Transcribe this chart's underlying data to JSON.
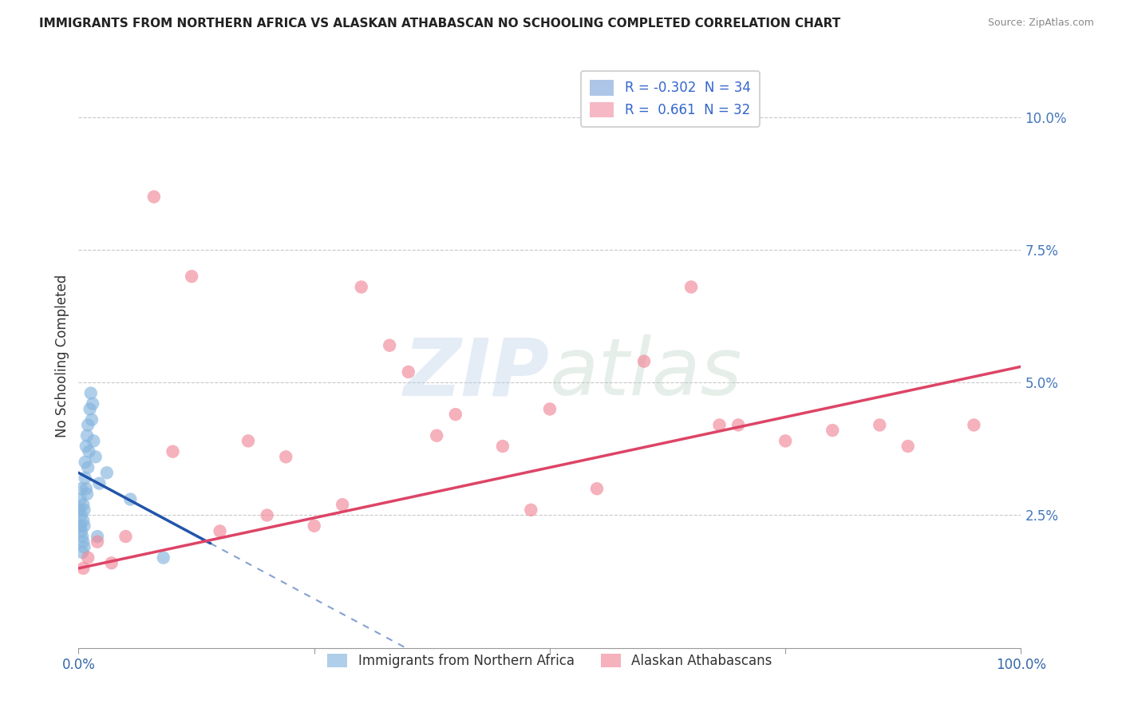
{
  "title": "IMMIGRANTS FROM NORTHERN AFRICA VS ALASKAN ATHABASCAN NO SCHOOLING COMPLETED CORRELATION CHART",
  "source": "Source: ZipAtlas.com",
  "ylabel": "No Schooling Completed",
  "watermark_zip": "ZIP",
  "watermark_atlas": "atlas",
  "legend1_label": "R = -0.302  N = 34",
  "legend2_label": "R =  0.661  N = 32",
  "legend1_color": "#adc6e8",
  "legend2_color": "#f5b8c4",
  "dot1_color": "#85b5de",
  "dot2_color": "#f08898",
  "line1_color": "#2255aa",
  "line2_color": "#dd4466",
  "background_color": "#ffffff",
  "grid_color": "#c8c8c8",
  "xlim": [
    0,
    100
  ],
  "ylim": [
    0,
    11
  ],
  "yticks": [
    0,
    2.5,
    5.0,
    7.5,
    10.0
  ],
  "ytick_labels": [
    "",
    "2.5%",
    "5.0%",
    "7.5%",
    "10.0%"
  ],
  "blue_dots_x": [
    0.1,
    0.2,
    0.2,
    0.3,
    0.3,
    0.3,
    0.4,
    0.4,
    0.5,
    0.5,
    0.5,
    0.6,
    0.6,
    0.6,
    0.7,
    0.7,
    0.8,
    0.8,
    0.9,
    0.9,
    1.0,
    1.0,
    1.1,
    1.2,
    1.3,
    1.4,
    1.5,
    1.6,
    1.8,
    2.0,
    2.2,
    3.0,
    5.5,
    9.0
  ],
  "blue_dots_y": [
    2.6,
    2.3,
    2.8,
    2.2,
    2.5,
    3.0,
    1.8,
    2.1,
    2.0,
    2.4,
    2.7,
    1.9,
    2.3,
    2.6,
    3.2,
    3.5,
    3.0,
    3.8,
    2.9,
    4.0,
    3.4,
    4.2,
    3.7,
    4.5,
    4.8,
    4.3,
    4.6,
    3.9,
    3.6,
    2.1,
    3.1,
    3.3,
    2.8,
    1.7
  ],
  "pink_dots_x": [
    0.5,
    1.0,
    2.0,
    3.5,
    5.0,
    8.0,
    10.0,
    12.0,
    15.0,
    18.0,
    20.0,
    22.0,
    25.0,
    28.0,
    30.0,
    33.0,
    35.0,
    38.0,
    40.0,
    45.0,
    48.0,
    50.0,
    55.0,
    60.0,
    65.0,
    68.0,
    70.0,
    75.0,
    80.0,
    85.0,
    88.0,
    95.0
  ],
  "pink_dots_y": [
    1.5,
    1.7,
    2.0,
    1.6,
    2.1,
    8.5,
    3.7,
    7.0,
    2.2,
    3.9,
    2.5,
    3.6,
    2.3,
    2.7,
    6.8,
    5.7,
    5.2,
    4.0,
    4.4,
    3.8,
    2.6,
    4.5,
    3.0,
    5.4,
    6.8,
    4.2,
    4.2,
    3.9,
    4.1,
    4.2,
    3.8,
    4.2
  ],
  "blue_solid_x0": 0,
  "blue_solid_x1": 14,
  "blue_y_intercept": 3.3,
  "blue_slope": -0.095,
  "blue_dash_x1": 14,
  "blue_dash_x2": 55,
  "pink_y_intercept": 1.5,
  "pink_slope": 0.038,
  "pink_x0": 0,
  "pink_x1": 100
}
